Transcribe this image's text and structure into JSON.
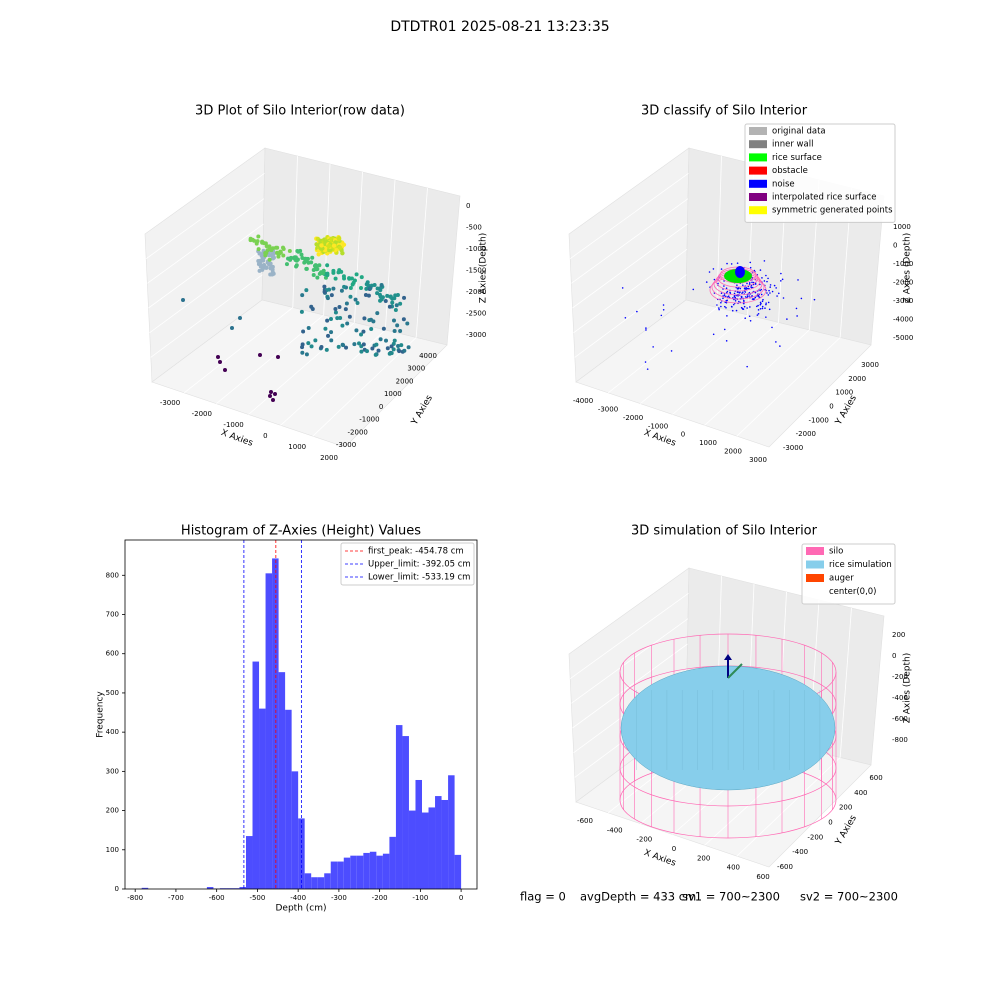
{
  "title": "DTDTR01 2025-08-21 13:23:35",
  "chart_data": [
    {
      "type": "scatter3d",
      "title": "3D Plot of Silo Interior(row data)",
      "xlabel": "X Axies",
      "ylabel": "Y Axies",
      "zlabel": "Z Axies (Depth)",
      "xticks": [
        -3000,
        -2000,
        -1000,
        0,
        1000,
        2000
      ],
      "yticks": [
        -3000,
        -2000,
        -1000,
        0,
        1000,
        2000,
        3000,
        4000
      ],
      "zticks": [
        0,
        -500,
        -1000,
        -1500,
        -2000,
        -2500,
        -3000
      ]
    },
    {
      "type": "scatter3d",
      "title": "3D classify of Silo Interior",
      "xlabel": "X Axies",
      "ylabel": "Y Axies",
      "zlabel": "Z Axies (Depth)",
      "xticks": [
        -4000,
        -3000,
        -2000,
        -1000,
        0,
        1000,
        2000,
        3000
      ],
      "yticks": [
        -3000,
        -2000,
        -1000,
        0,
        1000,
        2000,
        3000
      ],
      "zticks": [
        1000,
        0,
        -1000,
        -2000,
        -3000,
        -4000,
        -5000
      ],
      "legend": [
        {
          "name": "original data",
          "color": "#b3b3b3"
        },
        {
          "name": "inner wall",
          "color": "#808080"
        },
        {
          "name": "rice surface",
          "color": "#00ff00"
        },
        {
          "name": "obstacle",
          "color": "#ff0000"
        },
        {
          "name": "noise",
          "color": "#0000ff"
        },
        {
          "name": "interpolated rice surface",
          "color": "#800080"
        },
        {
          "name": "symmetric generated points",
          "color": "#ffff00"
        }
      ]
    },
    {
      "type": "histogram",
      "title": "Histogram of Z-Axies (Height) Values",
      "xlabel": "Depth (cm)",
      "ylabel": "Frequency",
      "color": "#4d4dff",
      "bins": [
        -800,
        -784,
        -768,
        -752,
        -736,
        -720,
        -704,
        -688,
        -672,
        -656,
        -640,
        -624,
        -608,
        -592,
        -576,
        -560,
        -544,
        -528,
        -512,
        -496,
        -480,
        -464,
        -448,
        -432,
        -416,
        -400,
        -384,
        -368,
        -352,
        -336,
        -320,
        -304,
        -288,
        -272,
        -256,
        -240,
        -224,
        -208,
        -192,
        -176,
        -160,
        -144,
        -128,
        -112,
        -96,
        -80,
        -64,
        -48,
        -32,
        -16,
        0
      ],
      "values": [
        0,
        3,
        0,
        0,
        0,
        0,
        0,
        0,
        0,
        0,
        0,
        5,
        1,
        2,
        2,
        2,
        5,
        135,
        580,
        460,
        805,
        843,
        553,
        457,
        300,
        180,
        40,
        30,
        30,
        40,
        70,
        70,
        80,
        85,
        85,
        92,
        95,
        85,
        90,
        133,
        418,
        390,
        200,
        278,
        195,
        208,
        237,
        227,
        290,
        87
      ],
      "vlines": [
        {
          "name": "first_peak: -454.78 cm",
          "value": -454.78,
          "color": "#ff0000"
        },
        {
          "name": "Upper_limit: -392.05 cm",
          "value": -392.05,
          "color": "#0000ff"
        },
        {
          "name": "Lower_limit: -533.19 cm",
          "value": -533.19,
          "color": "#0000ff"
        }
      ],
      "xlim": [
        -825,
        39
      ],
      "ylim": [
        0,
        890
      ],
      "xticks": [
        -800,
        -700,
        -600,
        -500,
        -400,
        -300,
        -200,
        -100,
        0
      ],
      "yticks": [
        0,
        100,
        200,
        300,
        400,
        500,
        600,
        700,
        800
      ],
      "legend_position": "upper right"
    },
    {
      "type": "surface3d",
      "title": "3D simulation of Silo Interior",
      "xlabel": "X Axies",
      "ylabel": "Y Axies",
      "zlabel": "Z Axies (Depth)",
      "xticks": [
        -600,
        -400,
        -200,
        0,
        200,
        400,
        600
      ],
      "yticks": [
        -600,
        -400,
        -200,
        0,
        200,
        400,
        600
      ],
      "zticks": [
        200,
        0,
        -200,
        -400,
        -600,
        -800
      ],
      "legend": [
        {
          "name": "silo",
          "color": "#ff69b4"
        },
        {
          "name": "rice simulation",
          "color": "#87ceeb"
        },
        {
          "name": "auger",
          "color": "#ff4500"
        },
        {
          "name": "center(0,0)",
          "color": "#ffffff"
        }
      ]
    }
  ],
  "footer": [
    "flag = 0",
    "avgDepth = 433 cm",
    "sv1 = 700~2300",
    "sv2 = 700~2300"
  ]
}
